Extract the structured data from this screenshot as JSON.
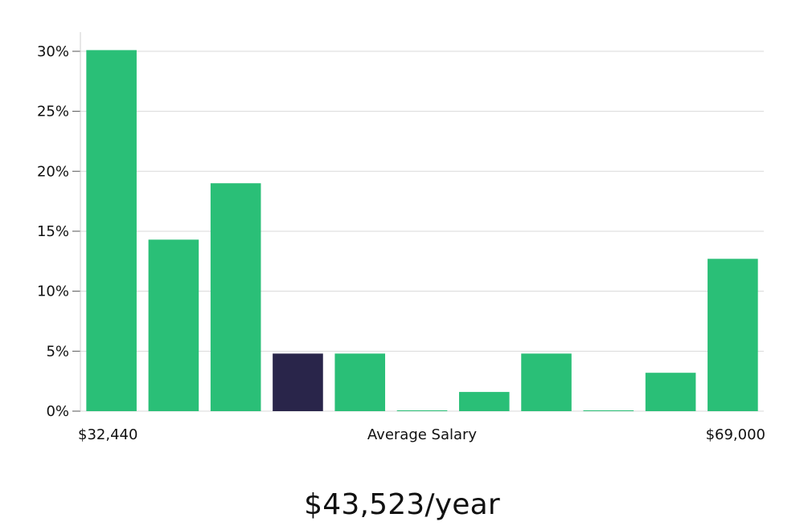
{
  "chart_data": {
    "type": "bar",
    "title": "",
    "xlabel": "Average Salary",
    "ylabel": "",
    "x_min_label": "$32,440",
    "x_max_label": "$69,000",
    "values": [
      30.1,
      14.3,
      19.0,
      4.8,
      4.8,
      0.05,
      1.6,
      4.8,
      0.05,
      3.2,
      12.7
    ],
    "highlight_index": 3,
    "ylim": [
      0,
      31.6
    ],
    "y_ticks": [
      0,
      5,
      10,
      15,
      20,
      25,
      30
    ],
    "y_tick_labels": [
      "0%",
      "5%",
      "10%",
      "15%",
      "20%",
      "25%",
      "30%"
    ],
    "grid": true,
    "legend": "none",
    "colors": {
      "bar": "#2abf77",
      "highlight": "#29254a",
      "grid": "#d9d9d9"
    }
  },
  "salary": {
    "average_text": "$43,523/year"
  }
}
